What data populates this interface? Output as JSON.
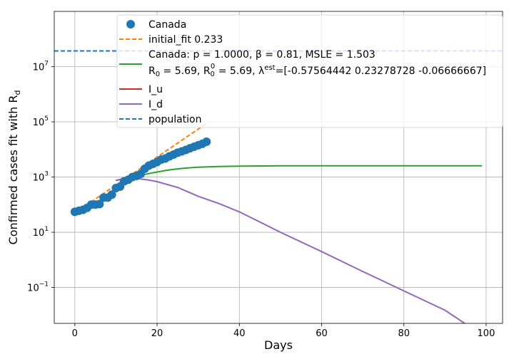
{
  "chart_data": {
    "type": "line",
    "title": "",
    "xlabel": "Days",
    "ylabel": "Confirmed cases fit with R",
    "ylabel_sub": "d",
    "xlim": [
      -5,
      104
    ],
    "ylim": [
      0.005,
      1000000000
    ],
    "yscale": "log",
    "grid": true,
    "legend_position": "top-right",
    "x_ticks": [
      0,
      20,
      40,
      60,
      80,
      100
    ],
    "x_tick_labels": [
      "0",
      "20",
      "40",
      "60",
      "80",
      "100"
    ],
    "y_ticks": [
      0.1,
      10,
      1000,
      100000,
      10000000
    ],
    "y_tick_bases": [
      "10",
      "10",
      "10",
      "10",
      "10"
    ],
    "y_tick_exps": [
      "−1",
      "1",
      "3",
      "5",
      "7"
    ],
    "legend": {
      "canada": "Canada",
      "initial_fit": "initial_fit 0.233",
      "model_line1": "Canada: p = 1.0000,  β =  0.81, MSLE = 1.503",
      "model_line2_a": " R",
      "model_line2_b": " = 5.69, R",
      "model_line2_c": " = 5.69, λ",
      "model_line2_d": "=[-0.57564442  0.23278728 -0.06666667]",
      "sub_0": "0",
      "sub_0b": "0",
      "sup_0": "0",
      "sup_est": "est",
      "i_u": "I_u",
      "i_d": "I_d",
      "population": "population"
    },
    "series": [
      {
        "name": "Canada",
        "kind": "scatter",
        "color": "#1f77b4",
        "x": [
          0,
          1,
          2,
          3,
          4,
          5,
          6,
          7,
          8,
          9,
          10,
          11,
          12,
          13,
          14,
          15,
          16,
          17,
          18,
          19,
          20,
          21,
          22,
          23,
          24,
          25,
          26,
          27,
          28,
          29,
          30,
          31,
          32
        ],
        "y": [
          55,
          60,
          65,
          77,
          100,
          100,
          105,
          180,
          180,
          230,
          400,
          450,
          700,
          800,
          1000,
          1100,
          1300,
          2000,
          2600,
          3000,
          3500,
          4300,
          4700,
          5600,
          6500,
          7600,
          8500,
          9600,
          11000,
          12500,
          14200,
          16000,
          19000
        ]
      },
      {
        "name": "initial_fit 0.233",
        "kind": "line",
        "color": "#ff7f0e",
        "dashed": true,
        "x": [
          0,
          32
        ],
        "y": [
          50,
          87000
        ]
      },
      {
        "name": "Canada model",
        "kind": "line",
        "color": "#2ca02c",
        "x": [
          10,
          12,
          14,
          16,
          18,
          20,
          22,
          24,
          26,
          28,
          30,
          35,
          40,
          45,
          50,
          60,
          70,
          80,
          90,
          99
        ],
        "y": [
          750,
          870,
          1000,
          1150,
          1330,
          1520,
          1720,
          1900,
          2050,
          2170,
          2260,
          2400,
          2480,
          2520,
          2550,
          2560,
          2565,
          2568,
          2570,
          2570
        ]
      },
      {
        "name": "I_u",
        "kind": "line",
        "color": "#d62728",
        "x": [
          10,
          12
        ],
        "y": [
          760,
          870
        ]
      },
      {
        "name": "I_d",
        "kind": "line",
        "color": "#9467bd",
        "x": [
          10,
          12,
          14,
          16,
          18,
          20,
          25,
          30,
          35,
          40,
          50,
          60,
          70,
          80,
          90,
          99
        ],
        "y": [
          760,
          870,
          900,
          850,
          780,
          680,
          420,
          200,
          110,
          55,
          10,
          2,
          0.38,
          0.075,
          0.015,
          0.0019
        ]
      },
      {
        "name": "population",
        "kind": "hline",
        "color": "#1f77b4",
        "dashed": true,
        "y": 37000000
      }
    ]
  }
}
